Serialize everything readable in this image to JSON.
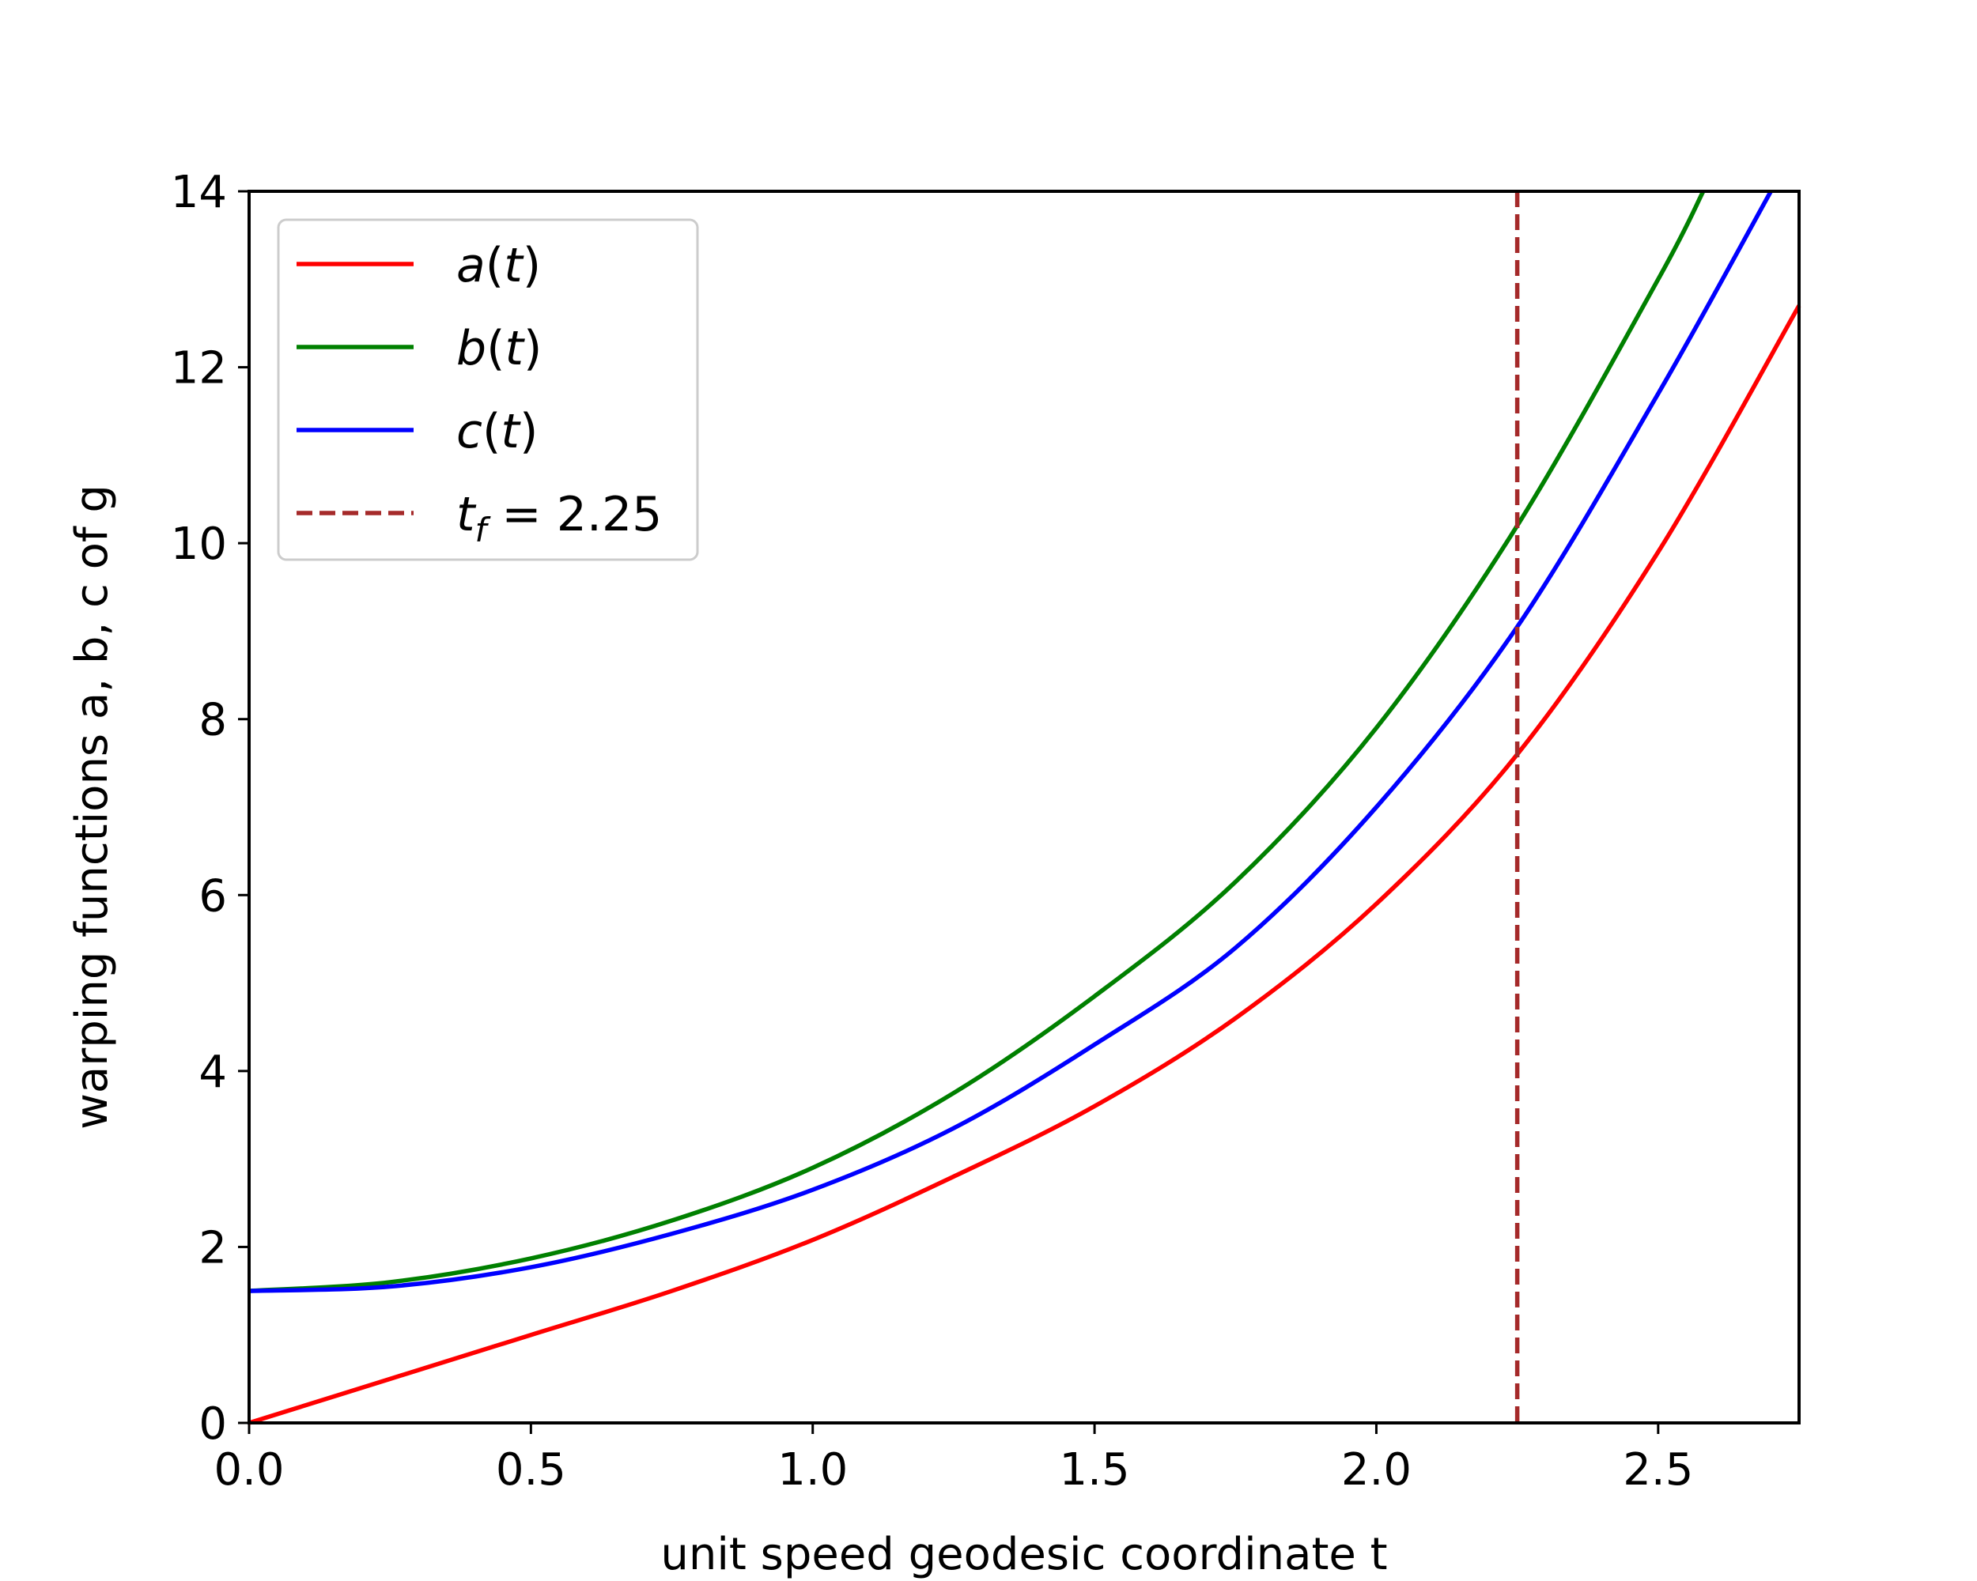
{
  "chart_data": {
    "type": "line",
    "xlabel": "unit speed geodesic coordinate t",
    "ylabel": "warping functions a, b, c of g",
    "xlim": [
      0,
      2.75
    ],
    "ylim": [
      0,
      14
    ],
    "xticks": [
      "0.0",
      "0.5",
      "1.0",
      "1.5",
      "2.0",
      "2.5"
    ],
    "yticks": [
      "0",
      "2",
      "4",
      "6",
      "8",
      "10",
      "12",
      "14"
    ],
    "legend_position": "top-left",
    "series": [
      {
        "name": "a(t)",
        "color": "#ff0000",
        "style": "solid",
        "x": [
          0,
          0.25,
          0.5,
          0.75,
          1.0,
          1.25,
          1.5,
          1.75,
          2.0,
          2.25,
          2.5,
          2.75
        ],
        "y": [
          0,
          0.5,
          1.0,
          1.5,
          2.08,
          2.8,
          3.6,
          4.6,
          5.9,
          7.6,
          9.9,
          12.7
        ]
      },
      {
        "name": "b(t)",
        "color": "#008000",
        "style": "solid",
        "x": [
          0,
          0.25,
          0.5,
          0.75,
          1.0,
          1.25,
          1.5,
          1.75,
          2.0,
          2.25,
          2.5,
          2.58
        ],
        "y": [
          1.5,
          1.6,
          1.87,
          2.3,
          2.9,
          3.75,
          4.85,
          6.15,
          7.9,
          10.2,
          13.0,
          14.0
        ]
      },
      {
        "name": "c(t)",
        "color": "#0000ff",
        "style": "solid",
        "x": [
          0,
          0.25,
          0.5,
          0.75,
          1.0,
          1.25,
          1.5,
          1.75,
          2.0,
          2.25,
          2.5,
          2.7
        ],
        "y": [
          1.5,
          1.55,
          1.77,
          2.15,
          2.65,
          3.35,
          4.3,
          5.4,
          7.0,
          9.05,
          11.7,
          14.0
        ]
      }
    ],
    "vline": {
      "name": "t_f = 2.25",
      "x": 2.25,
      "color": "#a52a2a",
      "style": "dashed"
    },
    "legend": [
      {
        "base": "a",
        "sub": "",
        "rest": "(t)",
        "color": "#ff0000",
        "dashed": false
      },
      {
        "base": "b",
        "sub": "",
        "rest": "(t)",
        "color": "#008000",
        "dashed": false
      },
      {
        "base": "c",
        "sub": "",
        "rest": "(t)",
        "color": "#0000ff",
        "dashed": false
      },
      {
        "base": "t",
        "sub": "f",
        "rest": " = 2.25",
        "color": "#a52a2a",
        "dashed": true
      }
    ]
  }
}
